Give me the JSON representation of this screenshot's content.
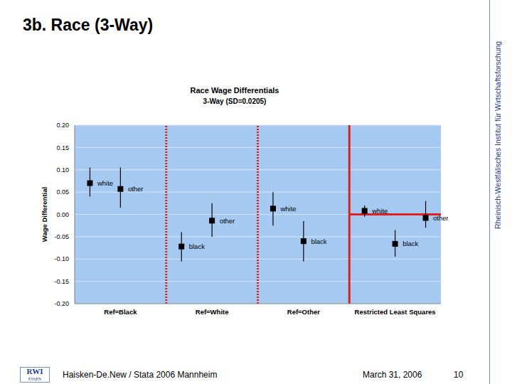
{
  "slide": {
    "title": "3b. Race (3-Way)",
    "side_text": "Rheinisch-Westfälisches Institut für Wirtschaftsforschung",
    "logo": [
      "RWI",
      "ESSEN"
    ],
    "footer": {
      "left": "Haisken-De.New / Stata 2006 Mannheim",
      "date": "March 31, 2006",
      "page": "10"
    }
  },
  "chart_data": {
    "type": "scatter",
    "title": "Race Wage Differentials",
    "subtitle": "3-Way (SD=0.0205)",
    "y_label": "Wage Differential",
    "categories": [
      "Ref=Black",
      "Ref=White",
      "Ref=Other",
      "Restricted Least Squares"
    ],
    "points": [
      {
        "group": 0,
        "label": "white",
        "value": 0.07,
        "error": [
          0.04,
          0.105
        ]
      },
      {
        "group": 0,
        "label": "other",
        "value": 0.057,
        "error": [
          0.015,
          0.105
        ]
      },
      {
        "group": 1,
        "label": "black",
        "value": -0.072,
        "error": [
          -0.105,
          -0.04
        ]
      },
      {
        "group": 1,
        "label": "other",
        "value": -0.014,
        "error": [
          -0.05,
          0.025
        ]
      },
      {
        "group": 2,
        "label": "white",
        "value": 0.013,
        "error": [
          -0.025,
          0.05
        ]
      },
      {
        "group": 2,
        "label": "black",
        "value": -0.06,
        "error": [
          -0.105,
          -0.015
        ]
      },
      {
        "group": 3,
        "label": "white",
        "value": 0.008,
        "error": [
          -0.005,
          0.02
        ]
      },
      {
        "group": 3,
        "label": "black",
        "value": -0.066,
        "error": [
          -0.095,
          -0.035
        ]
      },
      {
        "group": 3,
        "label": "other",
        "value": -0.008,
        "error": [
          -0.03,
          0.03
        ]
      }
    ],
    "color": "#000000",
    "marker": "square",
    "ylim": [
      -0.2,
      0.2
    ],
    "yticks": [
      {
        "value": -0.2,
        "label": "-0.20"
      },
      {
        "value": -0.15,
        "label": "-0.15"
      },
      {
        "value": -0.1,
        "label": "-0.10"
      },
      {
        "value": -0.05,
        "label": "-0.05"
      },
      {
        "value": 0,
        "label": "0.00"
      },
      {
        "value": 0.05,
        "label": "0.05"
      },
      {
        "value": 0.1,
        "label": "0.10"
      },
      {
        "value": 0.15,
        "label": "0.15"
      },
      {
        "value": 0.2,
        "label": "0.20"
      }
    ],
    "grid": true
  }
}
